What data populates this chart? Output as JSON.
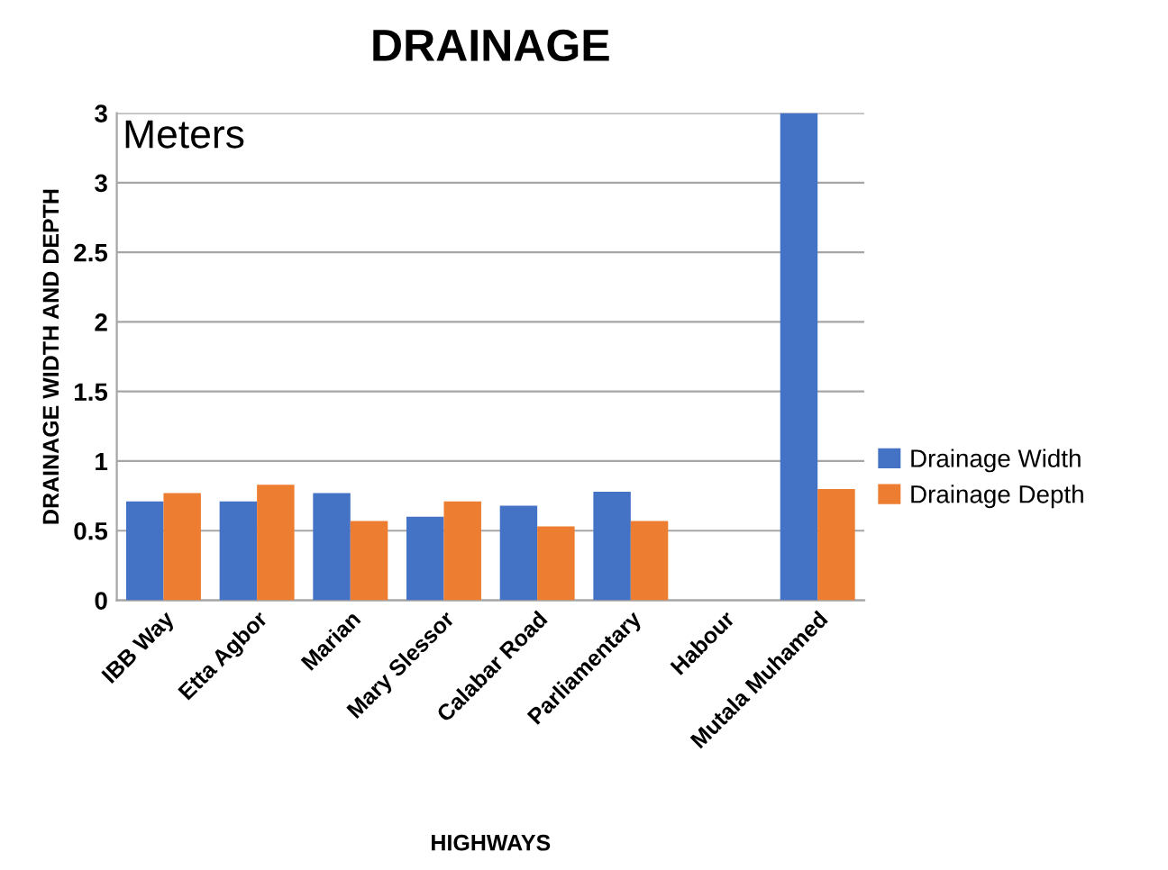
{
  "chart_data": {
    "type": "bar",
    "title": "DRAINAGE",
    "subtitle": "Meters",
    "xlabel": "HIGHWAYS",
    "ylabel": "DRAINAGE WIDTH AND DEPTH",
    "categories": [
      "IBB Way",
      "Etta Agbor",
      "Marian",
      "Mary Slessor",
      "Calabar Road",
      "Parliamentary",
      "Habour",
      "Mutala Muhamed"
    ],
    "series": [
      {
        "name": "Drainage Width",
        "color": "#4472c4",
        "values": [
          0.71,
          0.71,
          0.77,
          0.6,
          0.68,
          0.78,
          0,
          3.5
        ]
      },
      {
        "name": "Drainage Depth",
        "color": "#ed7d31",
        "values": [
          0.77,
          0.83,
          0.57,
          0.71,
          0.53,
          0.57,
          0,
          0.8
        ]
      }
    ],
    "ylim": [
      0,
      3.5
    ],
    "yticks": [
      0,
      0.5,
      1,
      1.5,
      2,
      2.5,
      3,
      {
        "value": 3.5,
        "label": "3"
      }
    ],
    "grid": "y",
    "legend": "right"
  }
}
